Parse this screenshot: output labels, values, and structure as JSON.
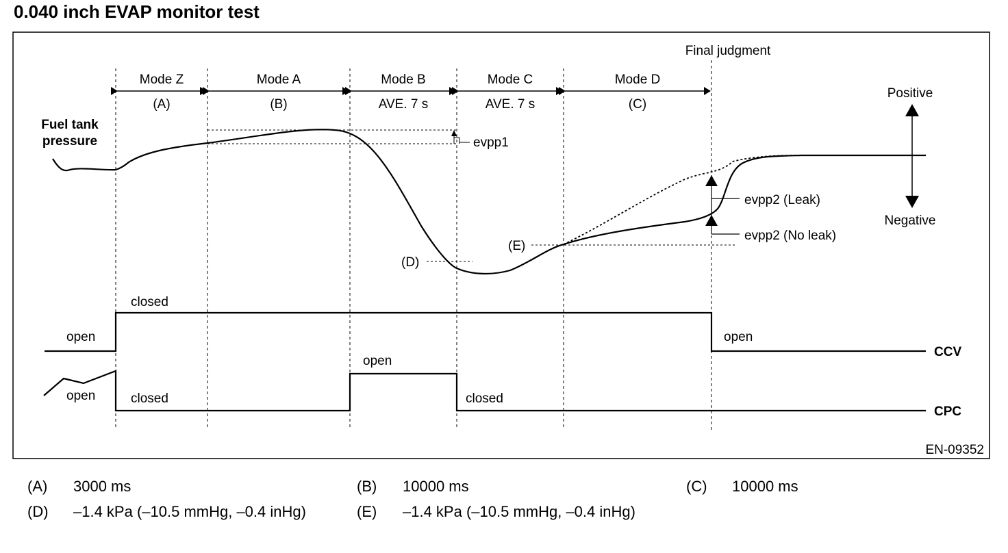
{
  "title": "0.040 inch EVAP monitor test",
  "figure_code": "EN-09352",
  "final_judgment_label": "Final judgment",
  "modes": [
    {
      "name": "Mode Z",
      "sub": "(A)"
    },
    {
      "name": "Mode A",
      "sub": "(B)"
    },
    {
      "name": "Mode B",
      "sub": "AVE. 7 s"
    },
    {
      "name": "Mode C",
      "sub": "AVE. 7 s"
    },
    {
      "name": "Mode D",
      "sub": "(C)"
    }
  ],
  "pressure_label_line1": "Fuel tank",
  "pressure_label_line2": "pressure",
  "direction": {
    "positive": "Positive",
    "negative": "Negative"
  },
  "markers": {
    "evpp1": "evpp1",
    "evpp2_leak": "evpp2 (Leak)",
    "evpp2_no_leak": "evpp2 (No leak)",
    "d": "(D)",
    "e": "(E)"
  },
  "ccv": {
    "name": "CCV",
    "state_before": "open",
    "state_during": "closed",
    "state_after": "open"
  },
  "cpc": {
    "name": "CPC",
    "state_before": "open",
    "state_during_1": "closed",
    "state_mode_b": "open",
    "state_after": "closed"
  },
  "legend": [
    {
      "key": "(A)",
      "value": "3000 ms"
    },
    {
      "key": "(B)",
      "value": "10000 ms"
    },
    {
      "key": "(C)",
      "value": "10000 ms"
    },
    {
      "key": "(D)",
      "value": "–1.4 kPa (–10.5 mmHg, –0.4 inHg)"
    },
    {
      "key": "(E)",
      "value": "–1.4 kPa (–10.5 mmHg, –0.4 inHg)"
    }
  ]
}
